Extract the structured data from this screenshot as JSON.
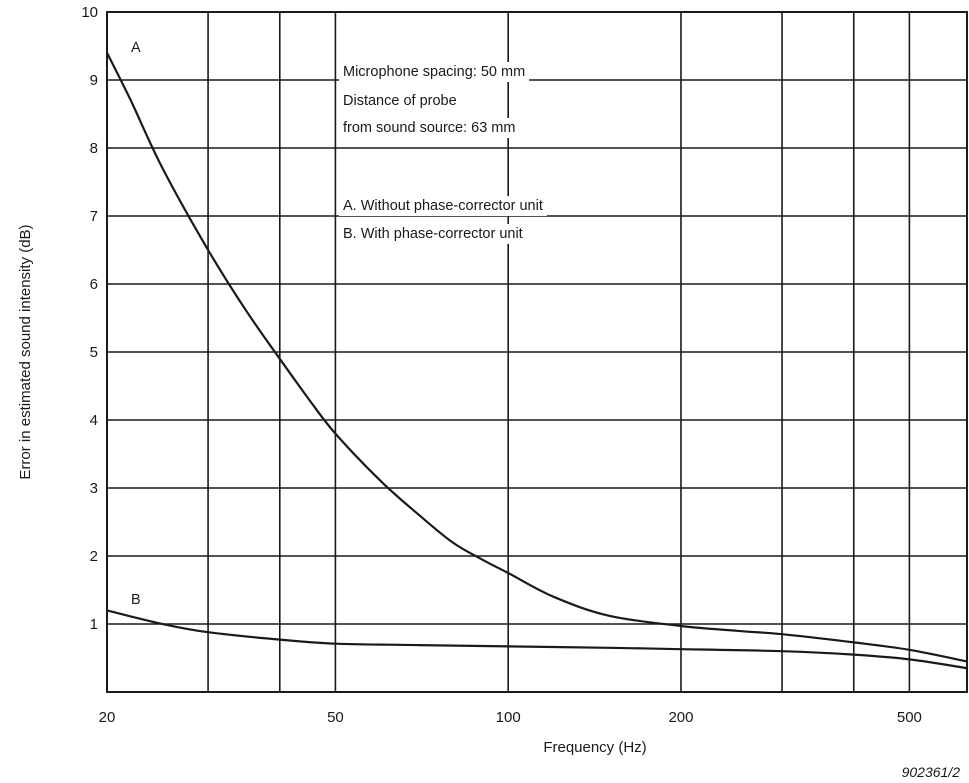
{
  "chart_data": {
    "type": "line",
    "xlabel": "Frequency (Hz)",
    "ylabel": "Error in estimated sound intensity (dB)",
    "x_scale": "log",
    "xlim": [
      20,
      630
    ],
    "ylim": [
      0,
      10
    ],
    "x_ticks": [
      20,
      50,
      100,
      200,
      500
    ],
    "x_gridlines": [
      20,
      30,
      40,
      50,
      100,
      200,
      300,
      400,
      500,
      630
    ],
    "y_ticks": [
      1,
      2,
      3,
      4,
      5,
      6,
      7,
      8,
      9,
      10
    ],
    "grid": true,
    "series": [
      {
        "name": "A",
        "x": [
          20,
          22,
          25,
          30,
          35,
          40,
          45,
          50,
          60,
          70,
          80,
          90,
          100,
          120,
          150,
          200,
          250,
          300,
          400,
          500,
          630
        ],
        "y": [
          9.4,
          8.7,
          7.7,
          6.5,
          5.6,
          4.9,
          4.3,
          3.8,
          3.1,
          2.6,
          2.2,
          1.95,
          1.75,
          1.4,
          1.12,
          0.97,
          0.9,
          0.85,
          0.73,
          0.62,
          0.45
        ]
      },
      {
        "name": "B",
        "x": [
          20,
          25,
          30,
          40,
          50,
          70,
          100,
          150,
          200,
          300,
          400,
          500,
          630
        ],
        "y": [
          1.2,
          1.0,
          0.88,
          0.77,
          0.71,
          0.69,
          0.67,
          0.65,
          0.63,
          0.6,
          0.55,
          0.48,
          0.35
        ]
      }
    ],
    "annotations": [
      "Microphone spacing: 50 mm",
      "Distance of probe",
      "from sound source: 63 mm",
      "A. Without phase-corrector unit",
      "B. With phase-corrector unit"
    ],
    "reference": "902361/2"
  }
}
